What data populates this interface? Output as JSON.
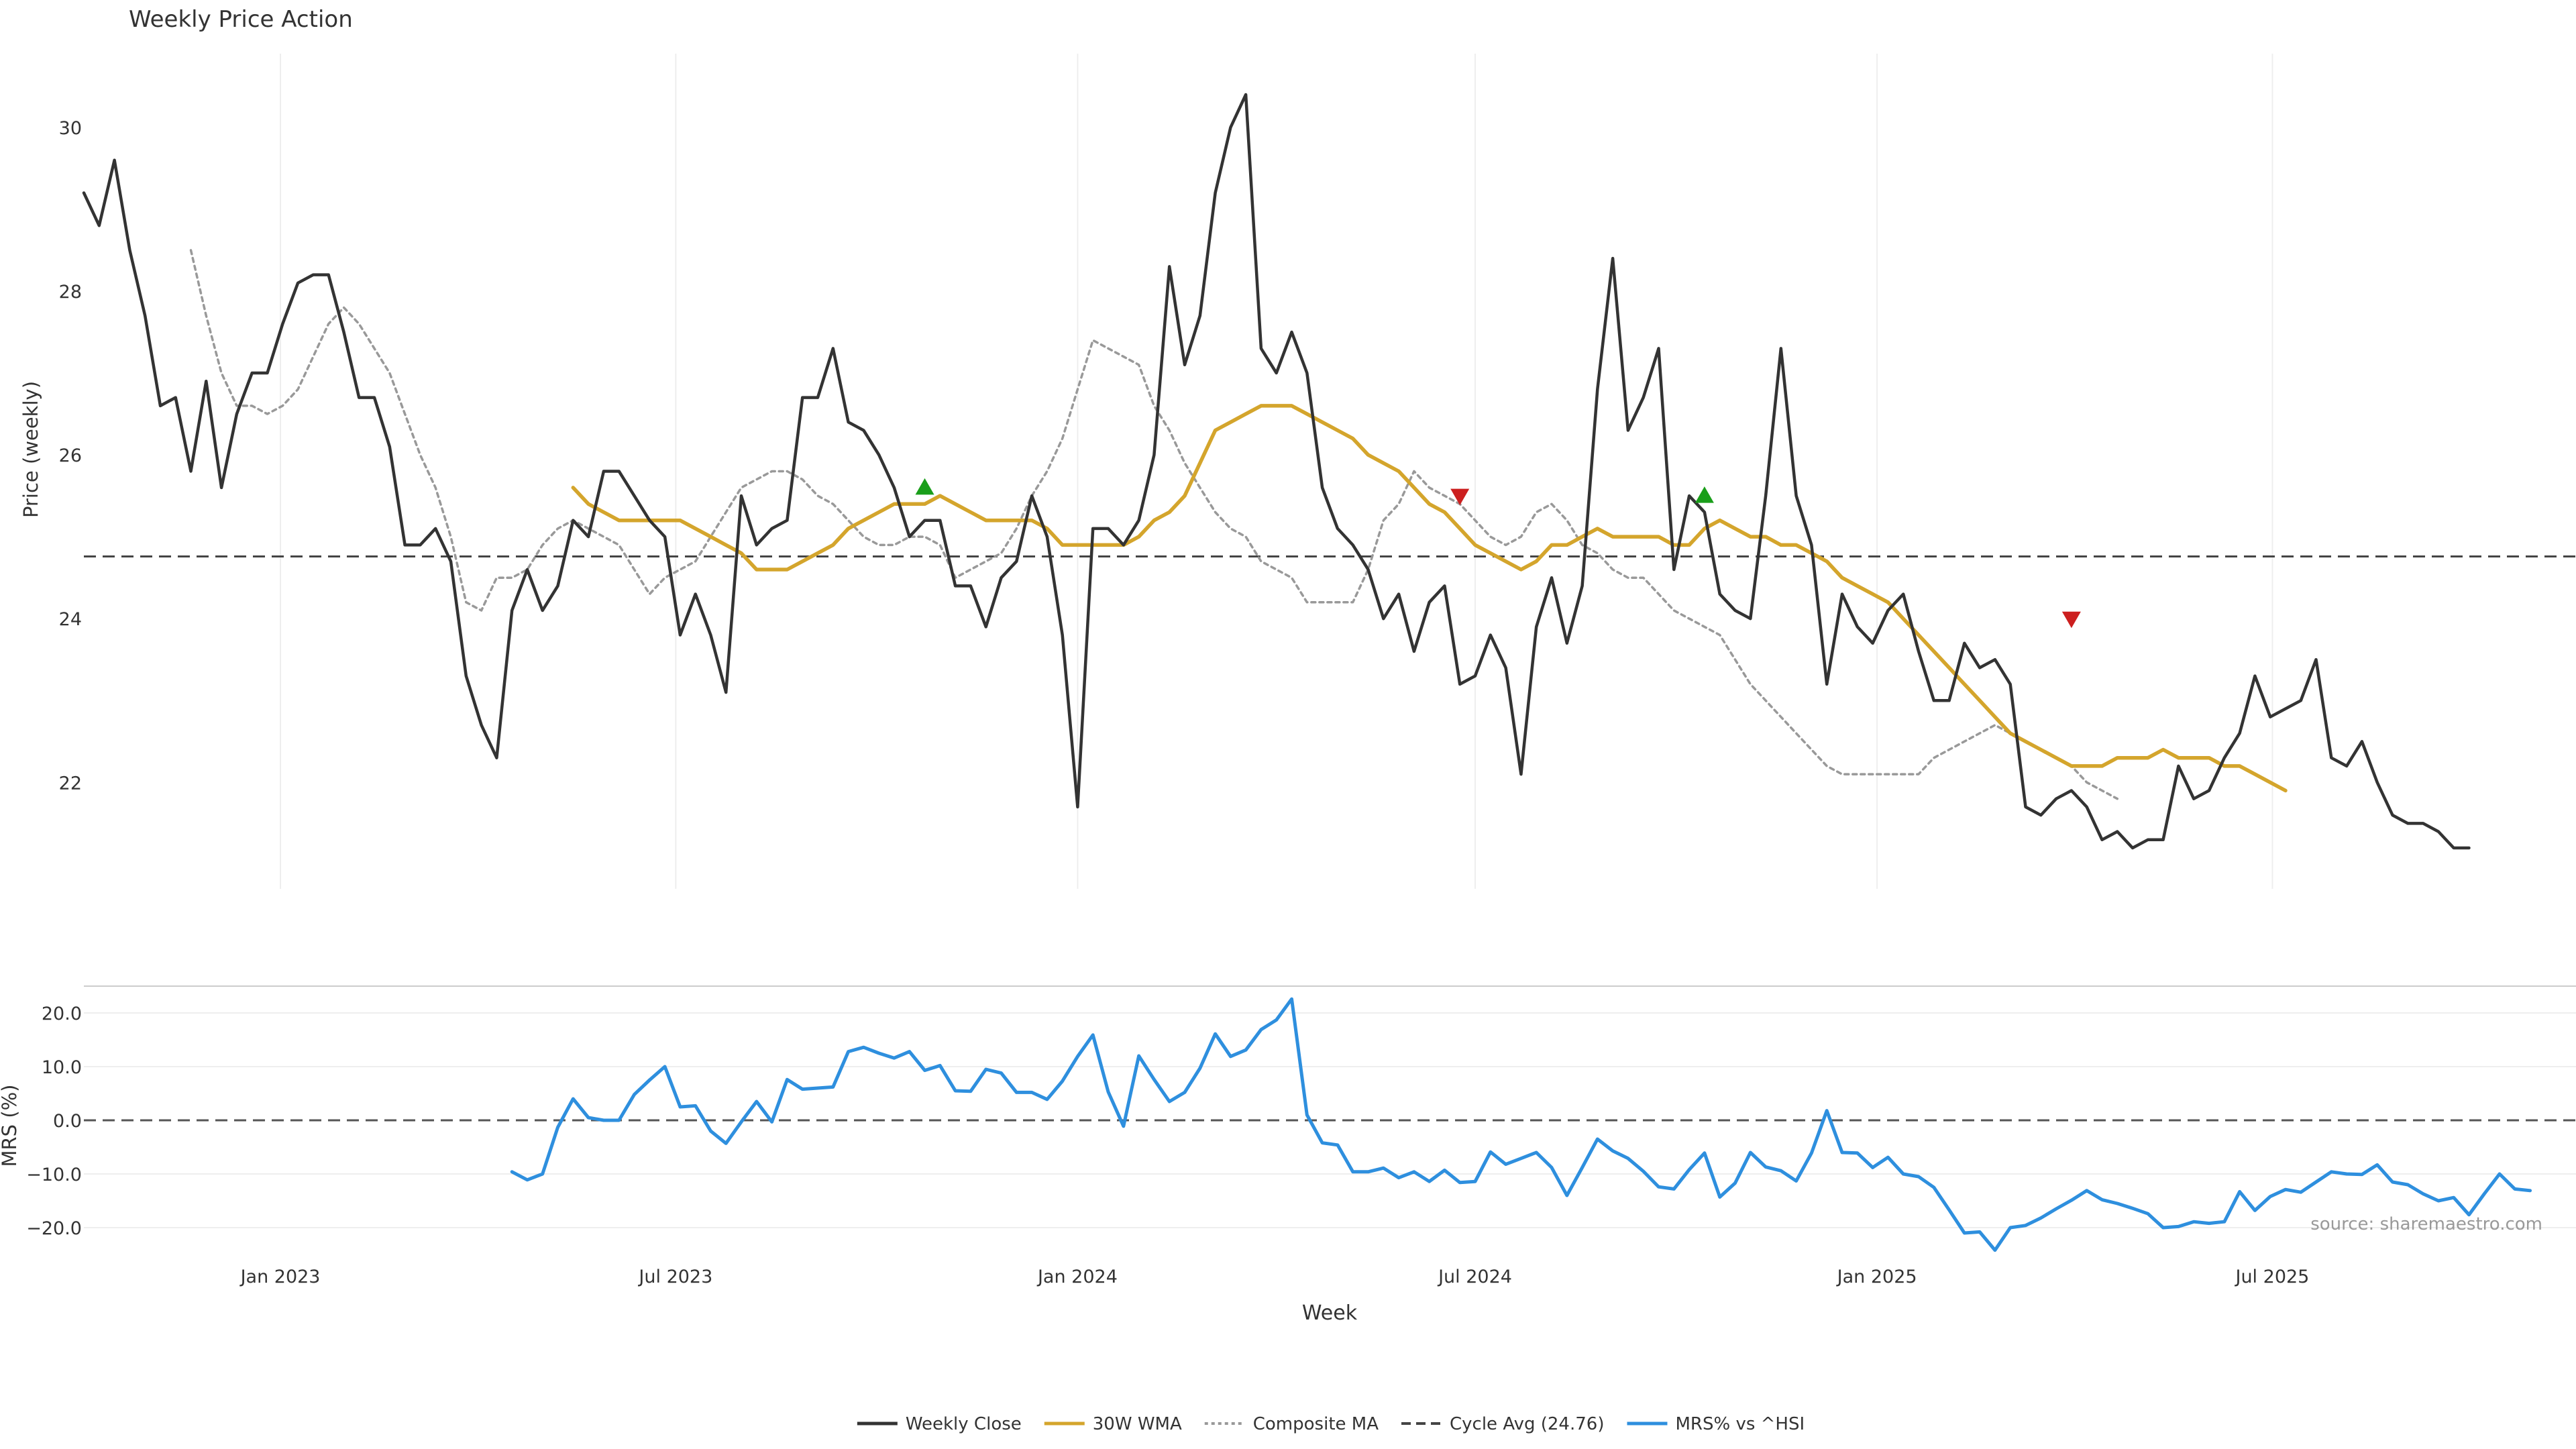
{
  "chart_data": [
    {
      "type": "line",
      "title": "Weekly Price Action",
      "ylabel": "Price (weekly)",
      "xlabel": "Week",
      "ylim": [
        20.7,
        30.9
      ],
      "yticks": [
        22,
        24,
        26,
        28,
        30
      ],
      "xlim": [
        "2022-10-03",
        "2025-11-17"
      ],
      "xticks": [
        "2023-01-01",
        "2023-07-01",
        "2024-01-01",
        "2024-07-01",
        "2025-01-01",
        "2025-07-01"
      ],
      "xtick_labels": [
        "Jan 2023",
        "Jul 2023",
        "Jan 2024",
        "Jul 2024",
        "Jan 2025",
        "Jul 2025"
      ],
      "grid": true,
      "reference_line": {
        "name": "Cycle Avg (24.76)",
        "value": 24.76,
        "color": "#444444"
      },
      "series": [
        {
          "name": "Weekly Close",
          "color": "#333333",
          "start": "2022-10-03",
          "step_days": 7,
          "values": [
            29.2,
            28.8,
            29.6,
            28.5,
            27.7,
            26.6,
            26.7,
            25.8,
            26.9,
            25.6,
            26.5,
            27.0,
            27.0,
            27.6,
            28.1,
            28.2,
            28.2,
            27.5,
            26.7,
            26.7,
            26.1,
            24.9,
            24.9,
            25.1,
            24.7,
            23.3,
            22.7,
            22.3,
            24.1,
            24.6,
            24.1,
            24.4,
            25.2,
            25.0,
            25.8,
            25.8,
            25.5,
            25.2,
            25.0,
            23.8,
            24.3,
            23.8,
            23.1,
            25.5,
            24.9,
            25.1,
            25.2,
            26.7,
            26.7,
            27.3,
            26.4,
            26.3,
            26.0,
            25.6,
            25.0,
            25.2,
            25.2,
            24.4,
            24.4,
            23.9,
            24.5,
            24.7,
            25.5,
            25.0,
            23.8,
            21.7,
            25.1,
            25.1,
            24.9,
            25.2,
            26.0,
            28.3,
            27.1,
            27.7,
            29.2,
            30.0,
            30.4,
            27.3,
            27.0,
            27.5,
            27.0,
            25.6,
            25.1,
            24.9,
            24.6,
            24.0,
            24.3,
            23.6,
            24.2,
            24.4,
            23.2,
            23.3,
            23.8,
            23.4,
            22.1,
            23.9,
            24.5,
            23.7,
            24.4,
            26.8,
            28.4,
            26.3,
            26.7,
            27.3,
            24.6,
            25.5,
            25.3,
            24.3,
            24.1,
            24.0,
            25.5,
            27.3,
            25.5,
            24.9,
            23.2,
            24.3,
            23.9,
            23.7,
            24.1,
            24.3,
            23.6,
            23.0,
            23.0,
            23.7,
            23.4,
            23.5,
            23.2,
            21.7,
            21.6,
            21.8,
            21.9,
            21.7,
            21.3,
            21.4,
            21.2,
            21.3,
            21.3,
            22.2,
            21.8,
            21.9,
            22.3,
            22.6,
            23.3,
            22.8,
            22.9,
            23.0,
            23.5,
            22.3,
            22.2,
            22.5,
            22.0,
            21.6,
            21.5,
            21.5,
            21.4,
            21.2,
            21.2
          ]
        },
        {
          "name": "30W WMA",
          "color": "#d4a52c",
          "start": "2023-05-15",
          "step_days": 7,
          "values": [
            25.6,
            25.4,
            25.3,
            25.2,
            25.2,
            25.2,
            25.2,
            25.2,
            25.1,
            25.0,
            24.9,
            24.8,
            24.6,
            24.6,
            24.6,
            24.7,
            24.8,
            24.9,
            25.1,
            25.2,
            25.3,
            25.4,
            25.4,
            25.4,
            25.5,
            25.4,
            25.3,
            25.2,
            25.2,
            25.2,
            25.2,
            25.1,
            24.9,
            24.9,
            24.9,
            24.9,
            24.9,
            25.0,
            25.2,
            25.3,
            25.5,
            25.9,
            26.3,
            26.4,
            26.5,
            26.6,
            26.6,
            26.6,
            26.5,
            26.4,
            26.3,
            26.2,
            26.0,
            25.9,
            25.8,
            25.6,
            25.4,
            25.3,
            25.1,
            24.9,
            24.8,
            24.7,
            24.6,
            24.7,
            24.9,
            24.9,
            25.0,
            25.1,
            25.0,
            25.0,
            25.0,
            25.0,
            24.9,
            24.9,
            25.1,
            25.2,
            25.1,
            25.0,
            25.0,
            24.9,
            24.9,
            24.8,
            24.7,
            24.5,
            24.4,
            24.3,
            24.2,
            24.0,
            23.8,
            23.6,
            23.4,
            23.2,
            23.0,
            22.8,
            22.6,
            22.5,
            22.4,
            22.3,
            22.2,
            22.2,
            22.2,
            22.3,
            22.3,
            22.3,
            22.4,
            22.3,
            22.3,
            22.3,
            22.2,
            22.2,
            22.1,
            22.0,
            21.9
          ]
        },
        {
          "name": "Composite MA",
          "color": "#999999",
          "start": "2022-11-21",
          "step_days": 7,
          "values": [
            28.5,
            27.7,
            27.0,
            26.6,
            26.6,
            26.5,
            26.6,
            26.8,
            27.2,
            27.6,
            27.8,
            27.6,
            27.3,
            27.0,
            26.5,
            26.0,
            25.6,
            25.0,
            24.2,
            24.1,
            24.5,
            24.5,
            24.6,
            24.9,
            25.1,
            25.2,
            25.1,
            25.0,
            24.9,
            24.6,
            24.3,
            24.5,
            24.6,
            24.7,
            25.0,
            25.3,
            25.6,
            25.7,
            25.8,
            25.8,
            25.7,
            25.5,
            25.4,
            25.2,
            25.0,
            24.9,
            24.9,
            25.0,
            25.0,
            24.9,
            24.5,
            24.6,
            24.7,
            24.8,
            25.1,
            25.5,
            25.8,
            26.2,
            26.8,
            27.4,
            27.3,
            27.2,
            27.1,
            26.6,
            26.3,
            25.9,
            25.6,
            25.3,
            25.1,
            25.0,
            24.7,
            24.6,
            24.5,
            24.2,
            24.2,
            24.2,
            24.2,
            24.6,
            25.2,
            25.4,
            25.8,
            25.6,
            25.5,
            25.4,
            25.2,
            25.0,
            24.9,
            25.0,
            25.3,
            25.4,
            25.2,
            24.9,
            24.8,
            24.6,
            24.5,
            24.5,
            24.3,
            24.1,
            24.0,
            23.9,
            23.8,
            23.5,
            23.2,
            23.0,
            22.8,
            22.6,
            22.4,
            22.2,
            22.1,
            22.1,
            22.1,
            22.1,
            22.1,
            22.1,
            22.3,
            22.4,
            22.5,
            22.6,
            22.7,
            22.6,
            22.5,
            22.4,
            22.3,
            22.2,
            22.0,
            21.9,
            21.8
          ]
        }
      ],
      "markers": [
        {
          "type": "buy",
          "date": "2023-10-23",
          "value": 25.6,
          "color": "#1a9e1a"
        },
        {
          "type": "sell",
          "date": "2024-06-24",
          "value": 25.5,
          "color": "#cc1f1f"
        },
        {
          "type": "buy",
          "date": "2024-10-14",
          "value": 25.5,
          "color": "#1a9e1a"
        },
        {
          "type": "sell",
          "date": "2025-03-31",
          "value": 24.0,
          "color": "#cc1f1f"
        }
      ]
    },
    {
      "type": "line",
      "ylabel": "MRS (%)",
      "xlabel": "Week",
      "ylim": [
        -25,
        25
      ],
      "yticks": [
        -20.0,
        -10.0,
        0.0,
        10.0,
        20.0
      ],
      "ytick_labels": [
        "−20.0",
        "−10.0",
        "0.0",
        "10.0",
        "20.0"
      ],
      "reference_line": {
        "value": 0.0,
        "color": "#555555"
      },
      "series": [
        {
          "name": "MRS% vs ^HSI",
          "color": "#2e8fde",
          "start": "2023-04-17",
          "step_days": 7,
          "values": [
            -9.6,
            -11.1,
            -10.0,
            -1.3,
            4.0,
            0.5,
            0.0,
            0.0,
            4.8,
            7.5,
            10.0,
            2.5,
            2.7,
            -2.0,
            -4.3,
            -0.3,
            3.5,
            -0.3,
            7.6,
            5.8,
            6.0,
            6.2,
            12.8,
            13.6,
            12.5,
            11.6,
            12.8,
            9.3,
            10.2,
            5.5,
            5.4,
            9.5,
            8.8,
            5.2,
            5.2,
            3.9,
            7.3,
            11.9,
            15.9,
            5.3,
            -1.1,
            12.0,
            7.6,
            3.5,
            5.2,
            9.7,
            16.1,
            11.9,
            13.1,
            16.9,
            18.7,
            22.6,
            1.0,
            -4.2,
            -4.6,
            -9.6,
            -9.6,
            -8.9,
            -10.7,
            -9.6,
            -11.4,
            -9.3,
            -11.6,
            -11.4,
            -5.9,
            -8.2,
            -7.1,
            -6.0,
            -8.8,
            -14.0,
            -8.8,
            -3.5,
            -5.7,
            -7.1,
            -9.5,
            -12.4,
            -12.8,
            -9.2,
            -6.1,
            -14.3,
            -11.7,
            -6.0,
            -8.7,
            -9.4,
            -11.3,
            -6.1,
            1.8,
            -6.0,
            -6.1,
            -8.8,
            -6.9,
            -10.0,
            -10.5,
            -12.5,
            -16.7,
            -21.0,
            -20.8,
            -24.2,
            -20.0,
            -19.6,
            -18.2,
            -16.5,
            -14.9,
            -13.1,
            -14.8,
            -15.5,
            -16.4,
            -17.4,
            -20.0,
            -19.8,
            -18.9,
            -19.2,
            -18.9,
            -13.3,
            -16.8,
            -14.2,
            -12.9,
            -13.4,
            -11.5,
            -9.6,
            -10.0,
            -10.1,
            -8.3,
            -11.5,
            -12.0,
            -13.7,
            -15.0,
            -14.4,
            -17.6,
            -13.7,
            -10.0,
            -12.8,
            -13.1
          ]
        }
      ],
      "annotation": "source: sharemaestro.com"
    }
  ],
  "legend": {
    "placement": "bottom-center",
    "entries": [
      {
        "label": "Weekly Close",
        "style": "solid",
        "color": "#333333"
      },
      {
        "label": "30W WMA",
        "style": "solid",
        "color": "#d4a52c"
      },
      {
        "label": "Composite MA",
        "style": "dotted",
        "color": "#999999"
      },
      {
        "label": "Cycle Avg (24.76)",
        "style": "dashed",
        "color": "#444444"
      },
      {
        "label": "MRS% vs ^HSI",
        "style": "solid",
        "color": "#2e8fde"
      }
    ]
  }
}
